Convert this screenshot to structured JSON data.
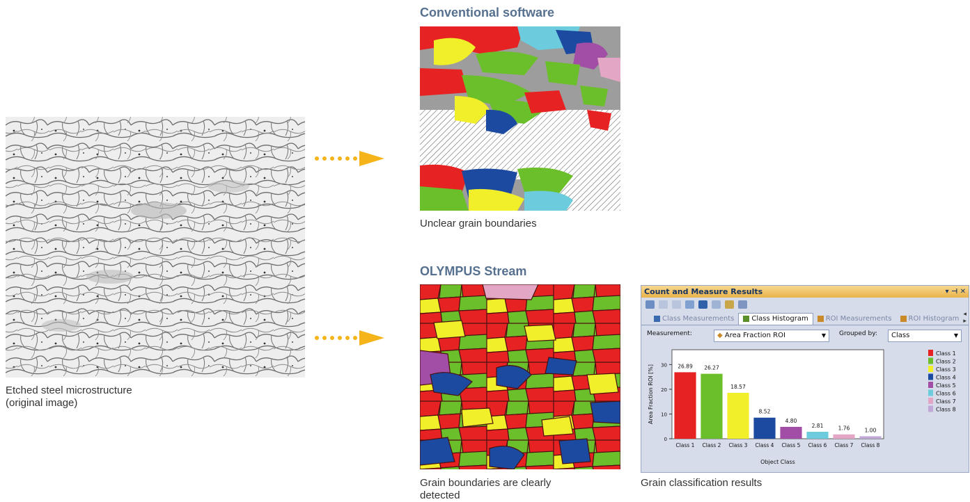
{
  "captions": {
    "original_line1": "Etched steel microstructure",
    "original_line2": "(original image)",
    "conventional_heading": "Conventional software",
    "conventional_caption": "Unclear grain boundaries",
    "olympus_heading": "OLYMPUS Stream",
    "olympus_caption_line1": "Grain boundaries are clearly",
    "olympus_caption_line2": "detected",
    "results_caption": "Grain classification results"
  },
  "colors": {
    "heading": "#56708f",
    "arrow": "#f4b41a",
    "class_colors": [
      "#e62222",
      "#6bbf2a",
      "#f1ee2a",
      "#1b4aa0",
      "#a24ea6",
      "#6ccbdc",
      "#e3a6c4",
      "#c2a8d8"
    ]
  },
  "panel": {
    "title": "Count and Measure Results",
    "title_controls": "▾ ⊣ ✕",
    "toolbar_icons": [
      "export-icon",
      "clipboard-icon",
      "zoom-in-icon",
      "zoom-out-icon",
      "chart-icon",
      "line-icon",
      "refresh-icon",
      "info-icon"
    ],
    "tabs": [
      {
        "label": "Class Measurements",
        "active": false
      },
      {
        "label": "Class Histogram",
        "active": true
      },
      {
        "label": "ROI Measurements",
        "active": false
      },
      {
        "label": "ROI Histogram",
        "active": false
      }
    ],
    "tab_nav": "◂ ▸",
    "measurement_label": "Measurement:",
    "measurement_value": "Area Fraction ROI",
    "grouped_by_label": "Grouped by:",
    "grouped_by_value": "Class"
  },
  "chart_data": {
    "type": "bar",
    "categories": [
      "Class 1",
      "Class 2",
      "Class 3",
      "Class 4",
      "Class 5",
      "Class 6",
      "Class 7",
      "Class 8"
    ],
    "values": [
      26.89,
      26.27,
      18.57,
      8.52,
      4.8,
      2.81,
      1.76,
      1.0
    ],
    "value_labels": [
      "26.89",
      "26.27",
      "18.57",
      "8.52",
      "4.80",
      "2.81",
      "1.76",
      "1.00"
    ],
    "yticks": [
      "0",
      "10",
      "20",
      "30"
    ],
    "ylim": [
      0,
      36
    ],
    "xlabel": "Object Class",
    "ylabel": "Area Fraction ROI [%]",
    "legend": [
      "Class 1",
      "Class 2",
      "Class 3",
      "Class 4",
      "Class 5",
      "Class 6",
      "Class 7",
      "Class 8"
    ],
    "legend_position": "right",
    "grid": false
  }
}
